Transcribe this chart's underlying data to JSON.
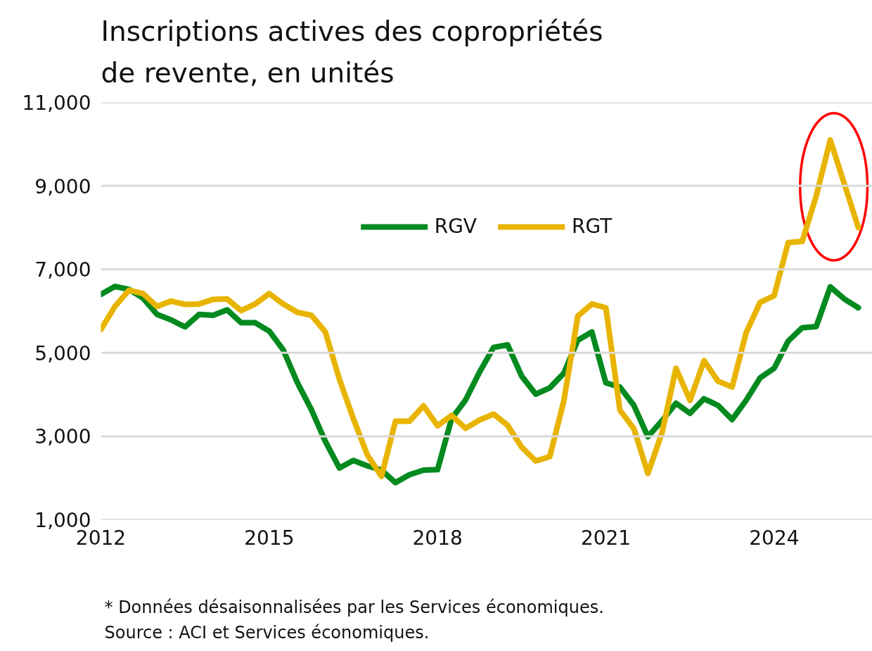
{
  "chart_data": {
    "type": "line",
    "title": "Inscriptions actives des copropriétés de revente, en unités",
    "x": [
      2012,
      2012.25,
      2012.5,
      2012.75,
      2013,
      2013.25,
      2013.5,
      2013.75,
      2014,
      2014.25,
      2014.5,
      2014.75,
      2015,
      2015.25,
      2015.5,
      2015.75,
      2016,
      2016.25,
      2016.5,
      2016.75,
      2017,
      2017.25,
      2017.5,
      2017.75,
      2018,
      2018.25,
      2018.5,
      2018.75,
      2019,
      2019.25,
      2019.5,
      2019.75,
      2020,
      2020.25,
      2020.5,
      2020.75,
      2021,
      2021.25,
      2021.5,
      2021.75,
      2022,
      2022.25,
      2022.5,
      2022.75,
      2023,
      2023.25,
      2023.5,
      2023.75,
      2024,
      2024.25,
      2024.5,
      2024.75,
      2025,
      2025.25,
      2025.5
    ],
    "series": [
      {
        "name": "RGV",
        "color": "#048a1f",
        "values": [
          6400,
          6590,
          6520,
          6310,
          5920,
          5790,
          5620,
          5920,
          5900,
          6030,
          5720,
          5720,
          5520,
          5070,
          4290,
          3640,
          2880,
          2240,
          2420,
          2290,
          2190,
          1890,
          2080,
          2190,
          2200,
          3420,
          3870,
          4540,
          5130,
          5190,
          4440,
          4010,
          4160,
          4510,
          5300,
          5500,
          4280,
          4180,
          3740,
          2990,
          3370,
          3790,
          3550,
          3900,
          3740,
          3400,
          3860,
          4400,
          4630,
          5280,
          5600,
          5630,
          6580,
          6290,
          6080
        ]
      },
      {
        "name": "RGT",
        "color": "#e8b400",
        "values": [
          5560,
          6110,
          6500,
          6420,
          6110,
          6240,
          6160,
          6170,
          6280,
          6290,
          6010,
          6170,
          6420,
          6170,
          5970,
          5900,
          5500,
          4370,
          3420,
          2550,
          2040,
          3360,
          3360,
          3730,
          3250,
          3500,
          3190,
          3390,
          3530,
          3260,
          2740,
          2410,
          2510,
          3840,
          5880,
          6170,
          6080,
          3630,
          3180,
          2110,
          3080,
          4630,
          3860,
          4810,
          4320,
          4180,
          5480,
          6210,
          6370,
          7640,
          7670,
          8760,
          10100,
          9050,
          8000
        ]
      }
    ],
    "xlim": [
      2012,
      2025.75
    ],
    "xticks": [
      2012,
      2015,
      2018,
      2021,
      2024
    ],
    "ylim": [
      1000,
      11000
    ],
    "yticks": [
      {
        "value": 1000,
        "label": "1,000"
      },
      {
        "value": 3000,
        "label": "3,000"
      },
      {
        "value": 5000,
        "label": "5,000"
      },
      {
        "value": 7000,
        "label": "7,000"
      },
      {
        "value": 9000,
        "label": "9,000"
      },
      {
        "value": 11000,
        "label": "11,000"
      }
    ],
    "grid": "y",
    "legend": "top",
    "line_style": "solid",
    "annotations": [
      "* Données désaisonnalisées par les Services économiques.",
      "Source : ACI et Services économiques."
    ]
  }
}
